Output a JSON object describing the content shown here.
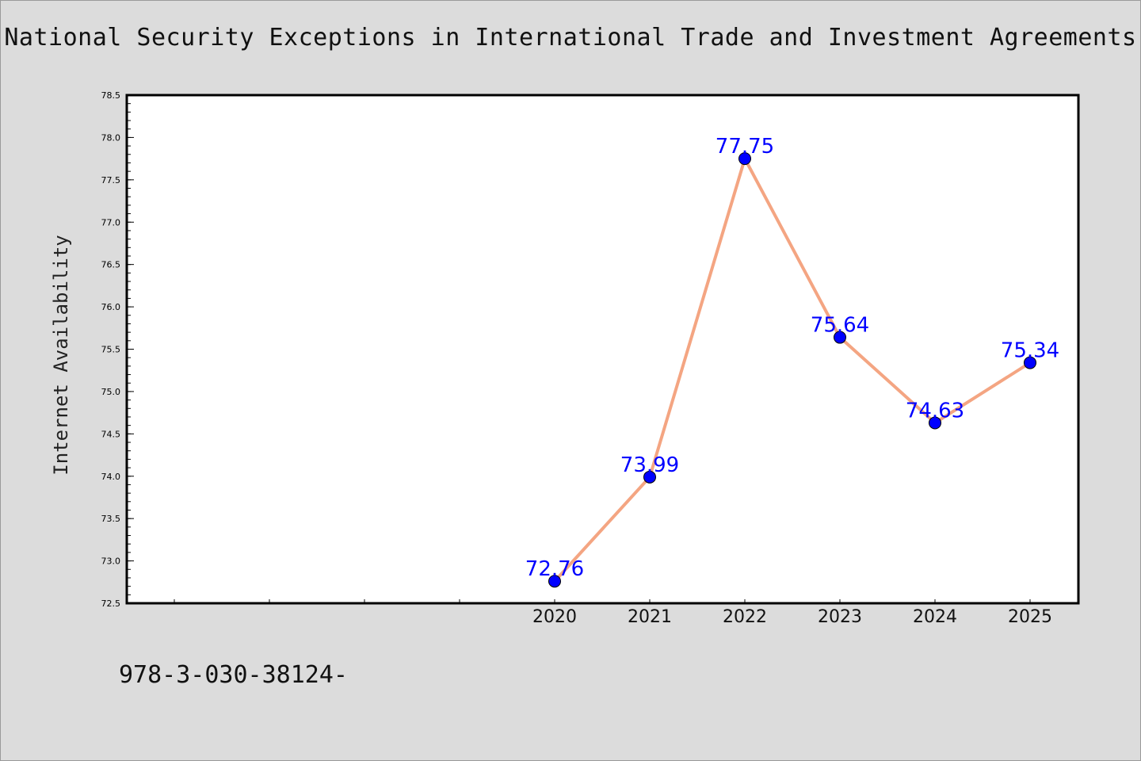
{
  "footnote": "978-3-030-38124-",
  "colors": {
    "background": "#dcdcdc",
    "plot_background": "#ffffff",
    "line": "#f4a582",
    "marker": "#0000ff",
    "label": "#0000ff"
  },
  "chart_data": {
    "type": "line",
    "title": "National Security Exceptions in International Trade and Investment Agreements",
    "xlabel": "",
    "ylabel": "Internet Availability",
    "x": [
      "2020",
      "2021",
      "2022",
      "2023",
      "2024",
      "2025"
    ],
    "series": [
      {
        "values": [
          72.76,
          73.99,
          77.75,
          75.64,
          74.63,
          75.34
        ]
      }
    ],
    "data_labels": [
      "72.76",
      "73.99",
      "77.75",
      "75.64",
      "74.63",
      "75.34"
    ],
    "ylim": [
      72.5,
      78.5
    ],
    "yticks": [
      "72.5",
      "73.0",
      "73.5",
      "74.0",
      "74.5",
      "75.0",
      "75.5",
      "76.0",
      "76.5",
      "77.0",
      "77.5",
      "78.0",
      "78.5"
    ],
    "grid": false,
    "legend": "none"
  }
}
